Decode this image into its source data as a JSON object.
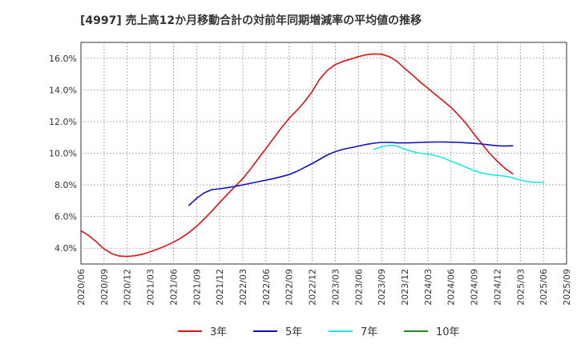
{
  "chart_data": {
    "type": "line",
    "title": "[4997]  売上高12か月移動合計の対前年同期増減率の平均値の推移",
    "xlabel": "",
    "ylabel": "",
    "x_ticks": [
      "2020/06",
      "2020/09",
      "2020/12",
      "2021/03",
      "2021/06",
      "2021/09",
      "2021/12",
      "2022/03",
      "2022/06",
      "2022/09",
      "2022/12",
      "2023/03",
      "2023/06",
      "2023/09",
      "2023/12",
      "2024/03",
      "2024/06",
      "2024/09",
      "2024/12",
      "2025/03",
      "2025/06",
      "2025/09"
    ],
    "y_ticks": [
      "4.0%",
      "6.0%",
      "8.0%",
      "10.0%",
      "12.0%",
      "14.0%",
      "16.0%"
    ],
    "y_tick_values": [
      4,
      6,
      8,
      10,
      12,
      14,
      16
    ],
    "ylim": [
      3.0,
      17.0
    ],
    "grid": true,
    "legend_position": "bottom",
    "series": [
      {
        "name": "3年",
        "color": "#dd1111",
        "start": "2020/06",
        "values": [
          5.1,
          4.8,
          4.4,
          3.95,
          3.65,
          3.5,
          3.48,
          3.52,
          3.62,
          3.78,
          3.95,
          4.15,
          4.38,
          4.65,
          4.98,
          5.38,
          5.85,
          6.35,
          6.88,
          7.4,
          7.9,
          8.4,
          9.0,
          9.65,
          10.3,
          10.95,
          11.6,
          12.2,
          12.7,
          13.25,
          13.9,
          14.7,
          15.25,
          15.6,
          15.8,
          15.95,
          16.1,
          16.22,
          16.27,
          16.25,
          16.1,
          15.8,
          15.35,
          14.95,
          14.5,
          14.1,
          13.7,
          13.3,
          12.9,
          12.4,
          11.85,
          11.2,
          10.6,
          10.0,
          9.5,
          9.05,
          8.7
        ]
      },
      {
        "name": "5年",
        "color": "#1111bb",
        "start": "2021/08",
        "values": [
          6.7,
          7.15,
          7.5,
          7.7,
          7.75,
          7.82,
          7.9,
          8.0,
          8.1,
          8.2,
          8.3,
          8.4,
          8.52,
          8.65,
          8.85,
          9.1,
          9.35,
          9.62,
          9.9,
          10.1,
          10.25,
          10.35,
          10.45,
          10.55,
          10.63,
          10.68,
          10.68,
          10.65,
          10.65,
          10.66,
          10.68,
          10.7,
          10.71,
          10.71,
          10.7,
          10.68,
          10.65,
          10.62,
          10.58,
          10.52,
          10.47,
          10.45,
          10.47
        ]
      },
      {
        "name": "7年",
        "color": "#22e5e5",
        "start": "2023/08",
        "values": [
          10.25,
          10.4,
          10.5,
          10.45,
          10.25,
          10.1,
          10.0,
          9.95,
          9.85,
          9.7,
          9.5,
          9.3,
          9.1,
          8.9,
          8.75,
          8.65,
          8.6,
          8.55,
          8.45,
          8.3,
          8.2,
          8.15,
          8.15
        ]
      },
      {
        "name": "10年",
        "color": "#228822",
        "start": "2025/06",
        "values": []
      }
    ]
  }
}
